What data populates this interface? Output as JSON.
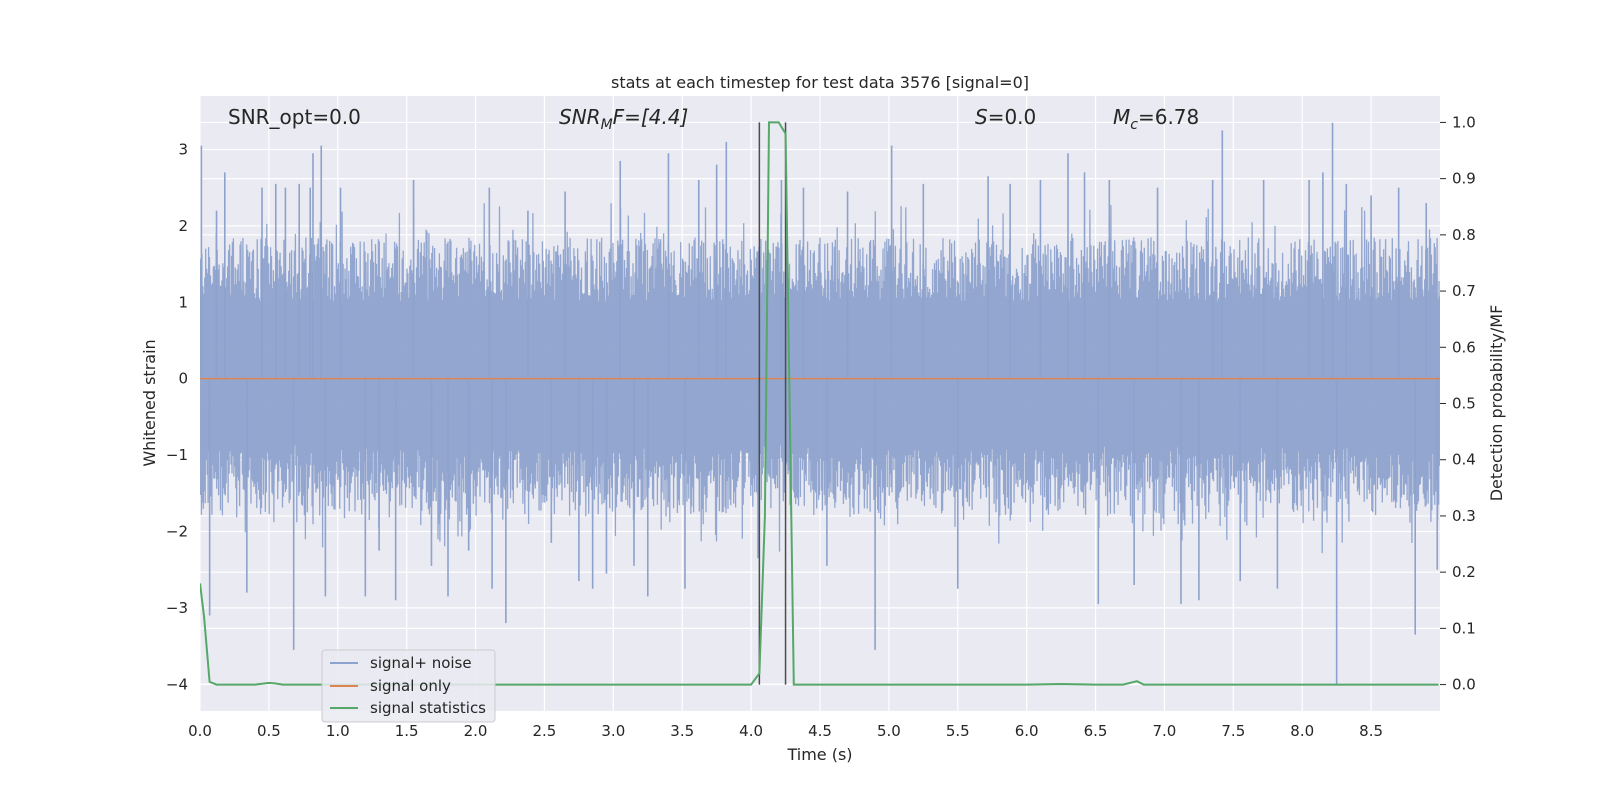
{
  "chart_data": {
    "type": "line",
    "title": "stats at each timestep for test data 3576 [signal=0]",
    "xlabel": "Time (s)",
    "ylabel": "Whitened strain",
    "ylabel_right": "Detection probability/MF",
    "xlim": [
      0,
      9
    ],
    "ylim": [
      -4.35,
      3.7
    ],
    "ylim_right": [
      -0.047,
      1.047
    ],
    "xticks": [
      "0.0",
      "0.5",
      "1.0",
      "1.5",
      "2.0",
      "2.5",
      "3.0",
      "3.5",
      "4.0",
      "4.5",
      "5.0",
      "5.5",
      "6.0",
      "6.5",
      "7.0",
      "7.5",
      "8.0",
      "8.5"
    ],
    "xtick_values": [
      0,
      0.5,
      1,
      1.5,
      2,
      2.5,
      3,
      3.5,
      4,
      4.5,
      5,
      5.5,
      6,
      6.5,
      7,
      7.5,
      8,
      8.5
    ],
    "yticks": [
      "−4",
      "−3",
      "−2",
      "−1",
      "0",
      "1",
      "2",
      "3"
    ],
    "ytick_values": [
      -4,
      -3,
      -2,
      -1,
      0,
      1,
      2,
      3
    ],
    "yticks_right": [
      "0.0",
      "0.1",
      "0.2",
      "0.3",
      "0.4",
      "0.5",
      "0.6",
      "0.7",
      "0.8",
      "0.9",
      "1.0"
    ],
    "ytick_values_right": [
      0,
      0.1,
      0.2,
      0.3,
      0.4,
      0.5,
      0.6,
      0.7,
      0.8,
      0.9,
      1.0
    ],
    "grid": true,
    "legend_position": "lower-left",
    "colors": {
      "noise": "#8da2cc",
      "signal": "#dd8452",
      "stats": "#55a868",
      "vline": "#4c4c4c",
      "background": "#eaeaf2",
      "grid": "#ffffff"
    },
    "series": [
      {
        "name": "signal+ noise",
        "note_kind": "noise",
        "spikes": [
          [
            0.01,
            3.05
          ],
          [
            0.07,
            -3.1
          ],
          [
            0.12,
            2.2
          ],
          [
            0.18,
            2.7
          ],
          [
            0.34,
            -2.8
          ],
          [
            0.45,
            2.5
          ],
          [
            0.55,
            2.55
          ],
          [
            0.62,
            2.5
          ],
          [
            0.68,
            -3.55
          ],
          [
            0.72,
            2.55
          ],
          [
            0.8,
            2.5
          ],
          [
            0.82,
            2.95
          ],
          [
            0.88,
            3.05
          ],
          [
            0.91,
            -2.85
          ],
          [
            1.02,
            2.5
          ],
          [
            1.2,
            -2.85
          ],
          [
            1.3,
            -2.25
          ],
          [
            1.42,
            -2.9
          ],
          [
            1.55,
            2.6
          ],
          [
            1.68,
            -2.45
          ],
          [
            1.8,
            -2.85
          ],
          [
            1.95,
            -2.25
          ],
          [
            2.1,
            2.5
          ],
          [
            2.12,
            -2.75
          ],
          [
            2.22,
            -3.2
          ],
          [
            2.38,
            2.2
          ],
          [
            2.55,
            -2.15
          ],
          [
            2.65,
            2.45
          ],
          [
            2.75,
            -2.65
          ],
          [
            2.85,
            -2.75
          ],
          [
            2.95,
            -2.55
          ],
          [
            3.05,
            2.85
          ],
          [
            3.15,
            -2.45
          ],
          [
            3.25,
            -2.85
          ],
          [
            3.4,
            2.95
          ],
          [
            3.52,
            -2.75
          ],
          [
            3.62,
            2.6
          ],
          [
            3.75,
            2.8
          ],
          [
            3.82,
            3.1
          ],
          [
            4.05,
            -2.35
          ],
          [
            4.22,
            2.6
          ],
          [
            4.38,
            2.5
          ],
          [
            4.55,
            -2.45
          ],
          [
            4.7,
            2.45
          ],
          [
            4.9,
            -3.55
          ],
          [
            5.02,
            3.05
          ],
          [
            5.25,
            2.55
          ],
          [
            5.5,
            -2.75
          ],
          [
            5.72,
            2.65
          ],
          [
            5.88,
            2.55
          ],
          [
            6.1,
            2.6
          ],
          [
            6.3,
            2.95
          ],
          [
            6.42,
            2.7
          ],
          [
            6.52,
            -2.95
          ],
          [
            6.6,
            2.6
          ],
          [
            6.78,
            -2.7
          ],
          [
            6.95,
            2.5
          ],
          [
            7.12,
            -2.95
          ],
          [
            7.25,
            -2.9
          ],
          [
            7.35,
            2.6
          ],
          [
            7.42,
            3.25
          ],
          [
            7.55,
            -2.65
          ],
          [
            7.72,
            2.6
          ],
          [
            7.82,
            -2.75
          ],
          [
            8.05,
            2.6
          ],
          [
            8.15,
            2.7
          ],
          [
            8.22,
            3.35
          ],
          [
            8.25,
            -4.0
          ],
          [
            8.32,
            2.55
          ],
          [
            8.5,
            2.4
          ],
          [
            8.7,
            2.5
          ],
          [
            8.82,
            -3.35
          ],
          [
            8.9,
            2.3
          ],
          [
            8.98,
            -2.5
          ]
        ],
        "band_amplitude": 1.85
      },
      {
        "name": "signal only",
        "note_kind": "signal",
        "x": [
          0,
          9
        ],
        "y": [
          0,
          0
        ]
      },
      {
        "name": "signal statistics",
        "note_kind": "stats",
        "axis": "right",
        "x": [
          0,
          0.03,
          0.07,
          0.12,
          0.2,
          0.3,
          0.4,
          0.5,
          0.55,
          0.6,
          0.8,
          1.0,
          1.5,
          2.0,
          2.5,
          3.0,
          3.5,
          3.8,
          4.0,
          4.06,
          4.1,
          4.13,
          4.2,
          4.25,
          4.31,
          4.35,
          4.4,
          4.5,
          5.0,
          5.5,
          6.0,
          6.25,
          6.5,
          6.7,
          6.8,
          6.85,
          6.92,
          7.0,
          7.5,
          8.0,
          8.5,
          8.99
        ],
        "y": [
          0.18,
          0.12,
          0.005,
          0.0,
          0.0,
          0.0,
          0.0,
          0.003,
          0.002,
          0.0,
          0.0,
          0.0,
          0.0,
          0.0,
          0.0,
          0.0,
          0.0,
          0.0,
          0.0,
          0.02,
          0.3,
          1.0,
          1.0,
          0.98,
          0.0,
          0.0,
          0.0,
          0.0,
          0.0,
          0.0,
          0.0,
          0.001,
          0.0,
          0.0,
          0.006,
          0.0,
          0.0,
          0.0,
          0.0,
          0.0,
          0.0,
          0.0
        ]
      }
    ],
    "vlines": [
      4.06,
      4.25
    ],
    "annotations": {
      "snr_opt": "SNR_opt=0.0",
      "snr_mf_main": "SNR",
      "snr_mf_sub": "M",
      "snr_mf_rest": "F=[4.4]",
      "s_label": "S",
      "s_rest": "=0.0",
      "mc_main": "M",
      "mc_sub": "c",
      "mc_rest": "=6.78"
    }
  }
}
